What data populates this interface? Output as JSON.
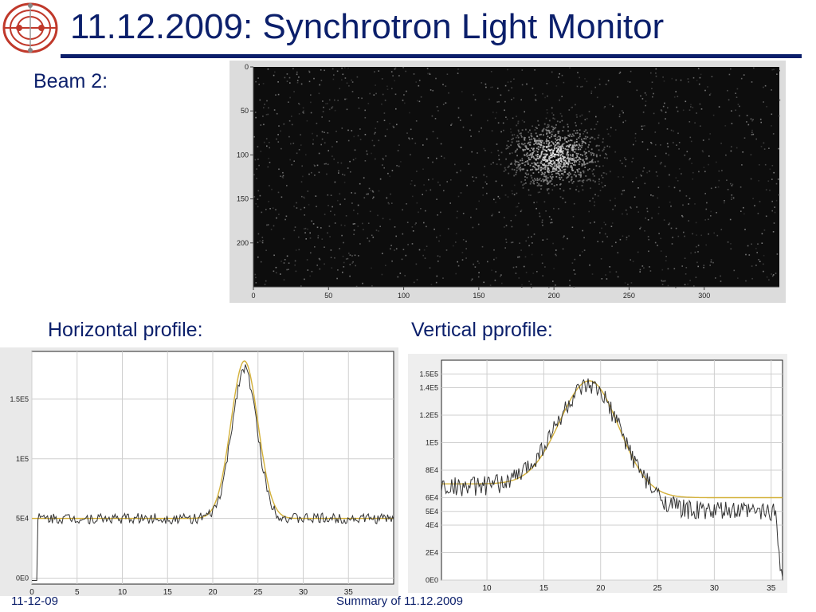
{
  "slide": {
    "title": "11.12.2009: Synchrotron Light Monitor",
    "beam_label": "Beam 2:",
    "horizontal_label": "Horizontal profile:",
    "vertical_label": "Vertical pprofile:",
    "footer_date": "11-12-09",
    "footer_center": "Summary of 11.12.2009"
  },
  "logo": {
    "icon": "lhc-logo-icon",
    "color": "#c0392b"
  },
  "colors": {
    "title": "#0b1f6b",
    "fit": "#d4b13a",
    "data": "#333333"
  },
  "chart_data": [
    {
      "type": "heatmap",
      "title": "",
      "x_ticks": [
        "0",
        "50",
        "100",
        "150",
        "200",
        "250",
        "300"
      ],
      "y_ticks": [
        "0",
        "50",
        "100",
        "150",
        "200"
      ],
      "xlim": [
        0,
        350
      ],
      "ylim": [
        0,
        250
      ],
      "spot": {
        "x": 200,
        "y": 100,
        "sigma_x": 15,
        "sigma_y": 18
      }
    },
    {
      "type": "line",
      "title": "",
      "x_ticks": [
        "0",
        "5",
        "10",
        "15",
        "20",
        "25",
        "30",
        "35"
      ],
      "y_ticks": [
        "0E0",
        "5E4",
        "1E5",
        "1.5E5"
      ],
      "xlim": [
        0,
        40
      ],
      "ylim": [
        -5000,
        190000
      ],
      "series": [
        {
          "kind": "measured",
          "baseline": 50000,
          "peak": 175000,
          "center": 23.5,
          "sigma": 1.4
        },
        {
          "kind": "fit",
          "baseline": 50000,
          "peak": 182000,
          "center": 23.5,
          "sigma": 1.5
        }
      ]
    },
    {
      "type": "line",
      "title": "",
      "x_ticks": [
        "10",
        "15",
        "20",
        "25",
        "30",
        "35"
      ],
      "y_ticks": [
        "0E0",
        "2E4",
        "4E4",
        "5E4",
        "6E4",
        "8E4",
        "1E5",
        "1.2E5",
        "1.4E5",
        "1.5E5"
      ],
      "xlim": [
        6,
        36
      ],
      "ylim": [
        0,
        160000
      ],
      "series": [
        {
          "kind": "measured",
          "baseline_left": 68000,
          "baseline_right": 50000,
          "peak": 140000,
          "center": 19,
          "sigma": 3
        },
        {
          "kind": "fit",
          "baseline_left": 70000,
          "baseline_right": 60000,
          "peak": 145000,
          "center": 19,
          "sigma": 2.6
        }
      ]
    }
  ]
}
